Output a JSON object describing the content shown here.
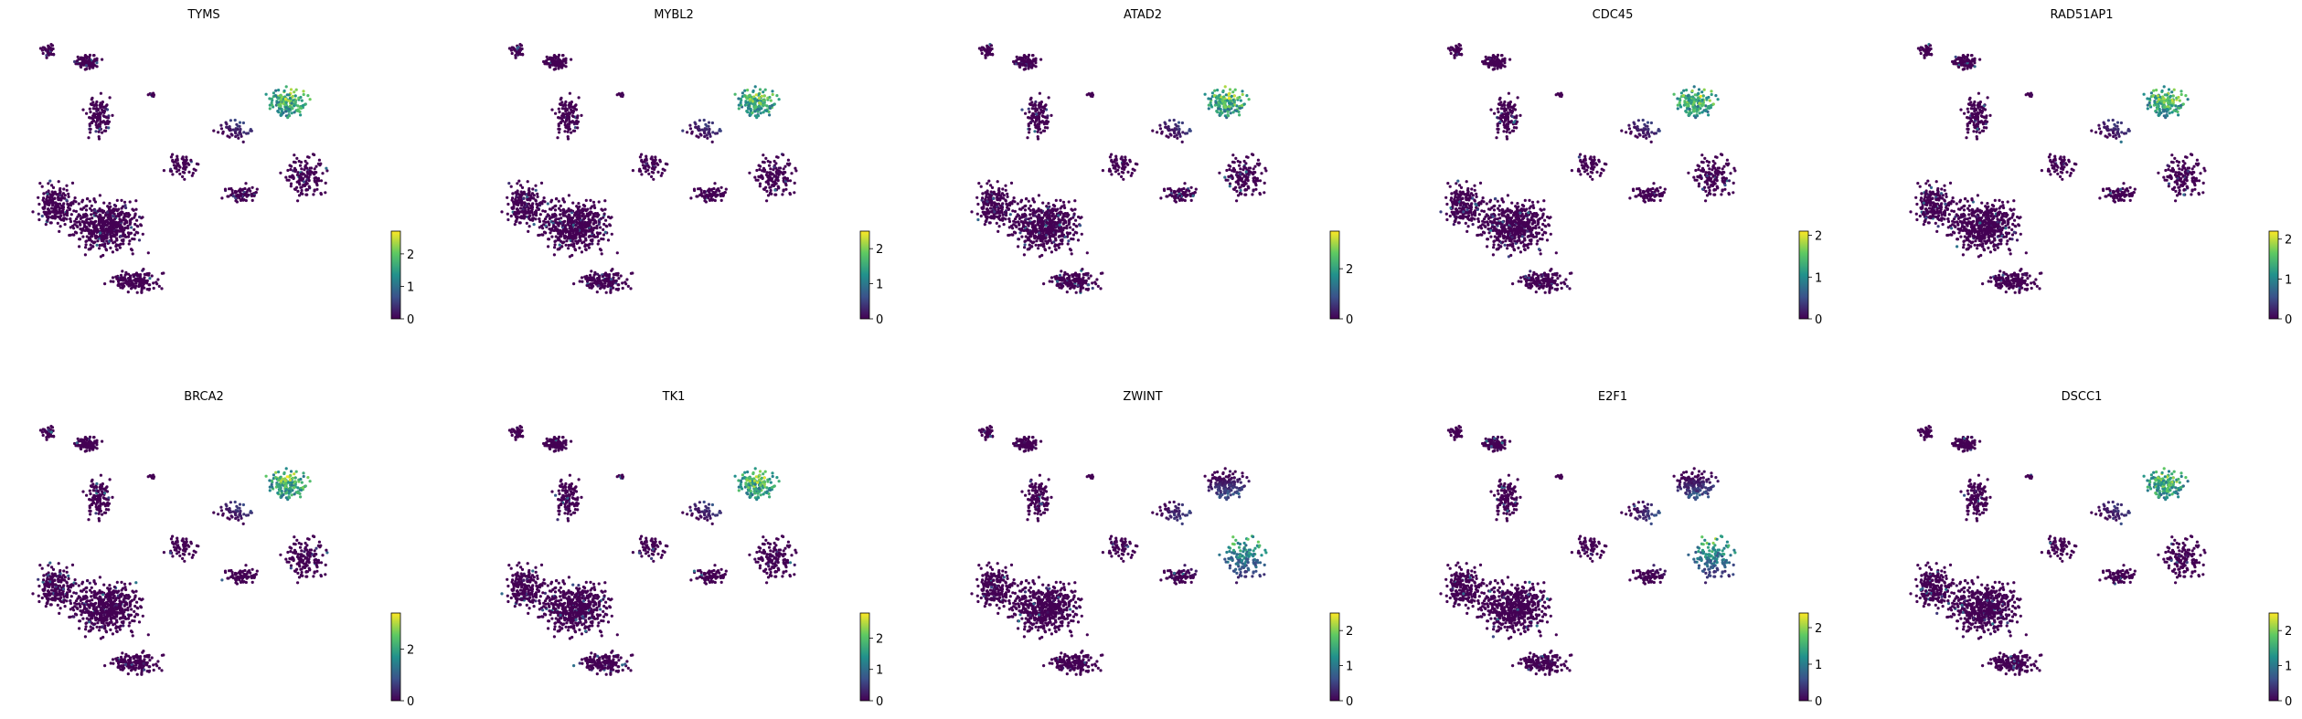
{
  "chart_data": {
    "type": "scatter",
    "layout": {
      "rows": 2,
      "cols": 5
    },
    "colormap": {
      "name": "viridis",
      "stops": [
        "#440154",
        "#3b528b",
        "#21918c",
        "#5ec962",
        "#fde725"
      ]
    },
    "axes_visible": false,
    "grid": false,
    "panels": [
      {
        "title": "TYMS",
        "colorbar_ticks": [
          "0",
          "1",
          "2"
        ],
        "colorbar_range": [
          0,
          2.7
        ],
        "hotspot": "upper-right"
      },
      {
        "title": "MYBL2",
        "colorbar_ticks": [
          "0",
          "1",
          "2"
        ],
        "colorbar_range": [
          0,
          2.5
        ],
        "hotspot": "upper-right"
      },
      {
        "title": "ATAD2",
        "colorbar_ticks": [
          "0",
          "2"
        ],
        "colorbar_range": [
          0,
          3.5
        ],
        "hotspot": "upper-right"
      },
      {
        "title": "CDC45",
        "colorbar_ticks": [
          "0",
          "1",
          "2"
        ],
        "colorbar_range": [
          0,
          2.1
        ],
        "hotspot": "upper-right"
      },
      {
        "title": "RAD51AP1",
        "colorbar_ticks": [
          "0",
          "1",
          "2"
        ],
        "colorbar_range": [
          0,
          2.2
        ],
        "hotspot": "upper-right"
      },
      {
        "title": "BRCA2",
        "colorbar_ticks": [
          "0",
          "2"
        ],
        "colorbar_range": [
          0,
          3.4
        ],
        "hotspot": "upper-right"
      },
      {
        "title": "TK1",
        "colorbar_ticks": [
          "0",
          "1",
          "2"
        ],
        "colorbar_range": [
          0,
          2.8
        ],
        "hotspot": "upper-right"
      },
      {
        "title": "ZWINT",
        "colorbar_ticks": [
          "0",
          "1",
          "2"
        ],
        "colorbar_range": [
          0,
          2.5
        ],
        "hotspot": "right-center"
      },
      {
        "title": "E2F1",
        "colorbar_ticks": [
          "0",
          "1",
          "2"
        ],
        "colorbar_range": [
          0,
          2.4
        ],
        "hotspot": "right-center"
      },
      {
        "title": "DSCC1",
        "colorbar_ticks": [
          "0",
          "1",
          "2"
        ],
        "colorbar_range": [
          0,
          2.5
        ],
        "hotspot": "upper-right"
      }
    ]
  }
}
